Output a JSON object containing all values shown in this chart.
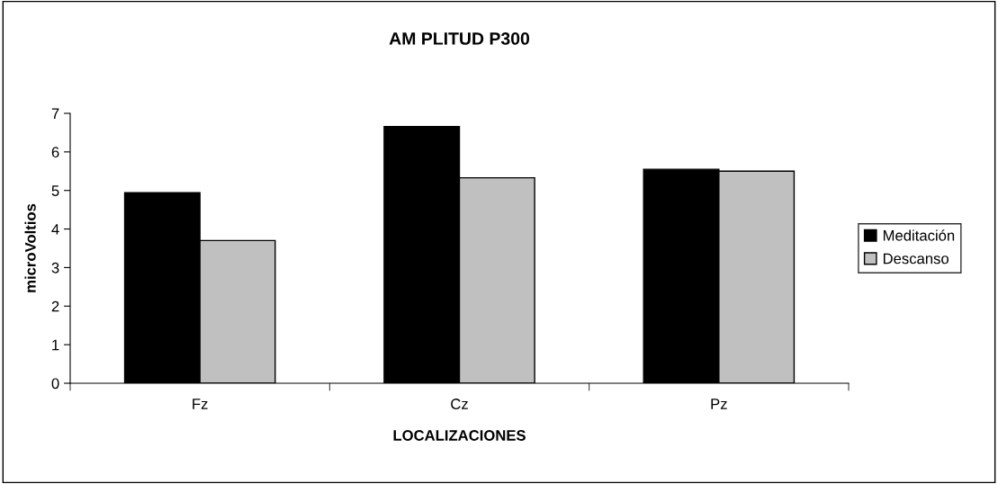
{
  "chart_data": {
    "type": "bar",
    "title": "AM PLITUD P300",
    "xlabel": "LOCALIZACIONES",
    "ylabel": "microVoltios",
    "categories": [
      "Fz",
      "Cz",
      "Pz"
    ],
    "series": [
      {
        "name": "Meditación",
        "color": "#000000",
        "values": [
          4.94,
          6.66,
          5.55
        ]
      },
      {
        "name": "Descanso",
        "color": "#c0c0c0",
        "values": [
          3.7,
          5.33,
          5.5
        ]
      }
    ],
    "ylim": [
      0,
      7
    ],
    "yticks": [
      0,
      1,
      2,
      3,
      4,
      5,
      6,
      7
    ],
    "grid": false,
    "legend": "right"
  }
}
